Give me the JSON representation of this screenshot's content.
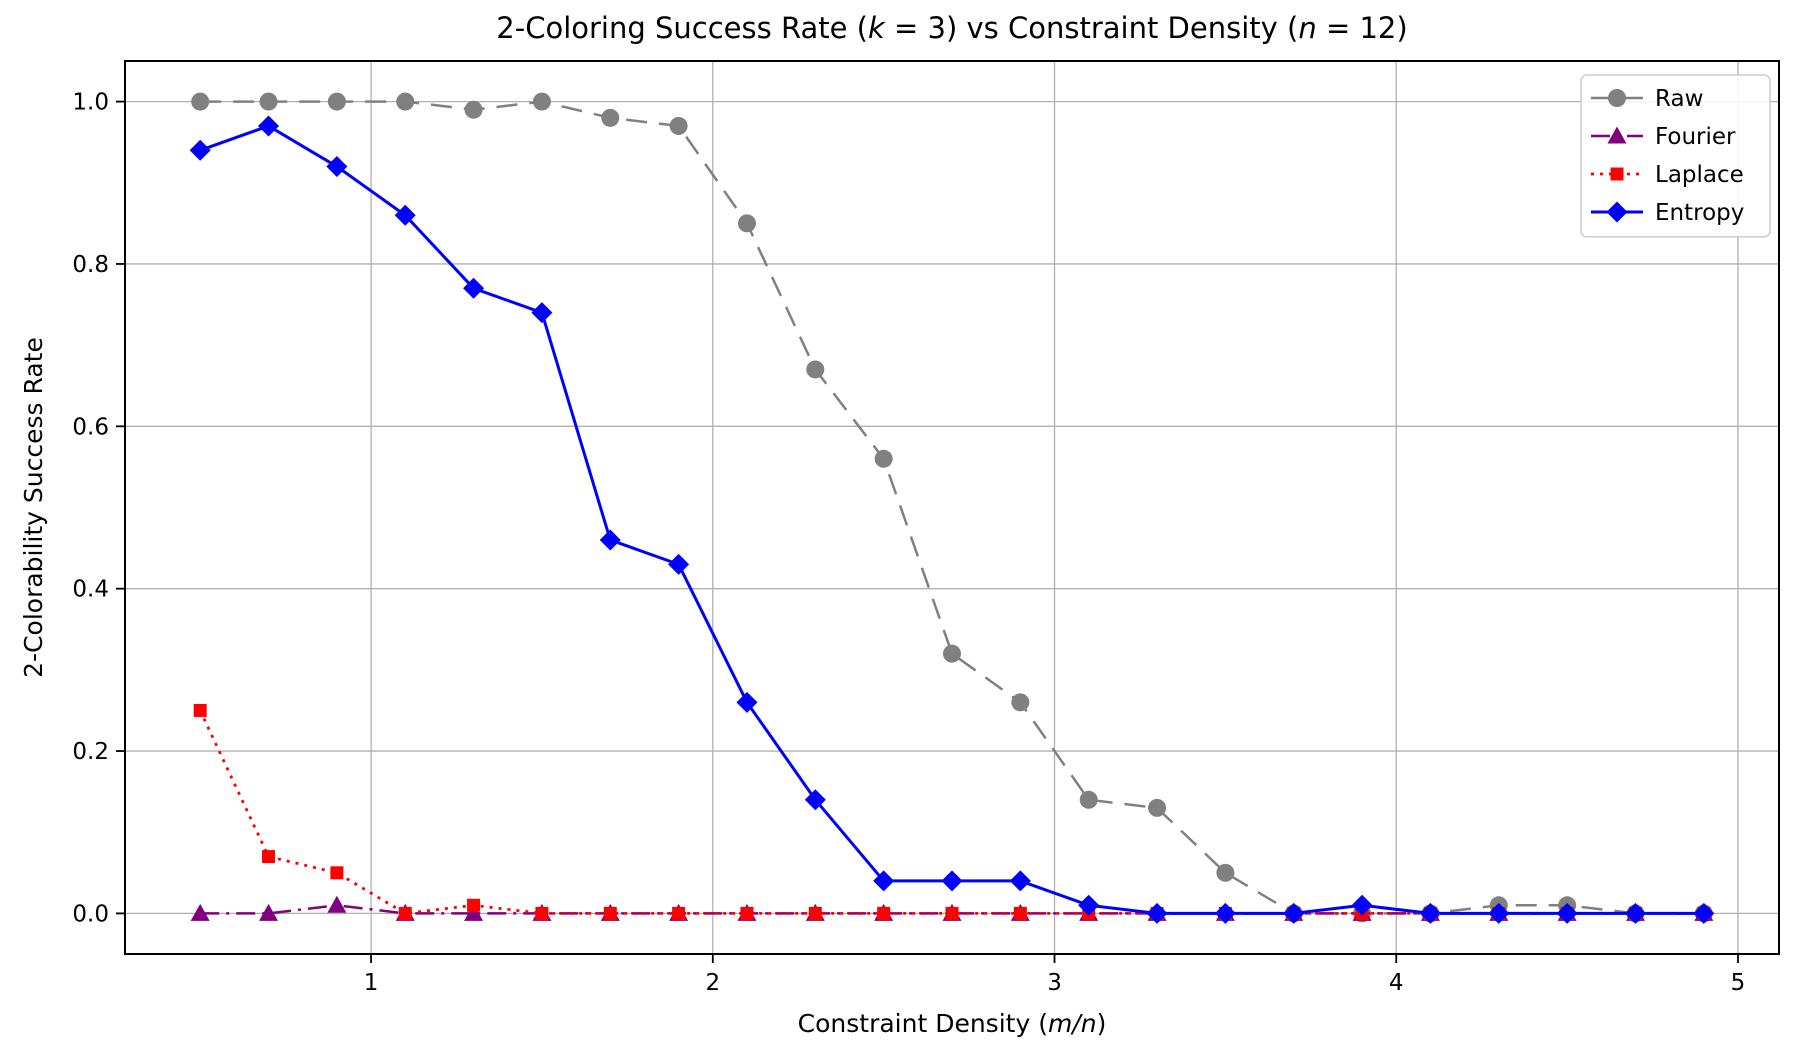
{
  "chart_data": {
    "type": "line",
    "title": "2-Coloring Success Rate (k = 3) vs Constraint Density (n = 12)",
    "title_segments": [
      {
        "t": "2-Coloring Success Rate ("
      },
      {
        "t": "k",
        "i": true
      },
      {
        "t": " = 3) vs Constraint Density ("
      },
      {
        "t": "n",
        "i": true
      },
      {
        "t": " = 12)"
      }
    ],
    "xlabel": "Constraint Density (m/n)",
    "xlabel_segments": [
      {
        "t": "Constraint Density ("
      },
      {
        "t": "m/n",
        "i": true
      },
      {
        "t": ")"
      }
    ],
    "ylabel": "2-Colorability Success Rate",
    "x": [
      0.5,
      0.7,
      0.9,
      1.1,
      1.3,
      1.5,
      1.7,
      1.9,
      2.1,
      2.3,
      2.5,
      2.7,
      2.9,
      3.1,
      3.3,
      3.5,
      3.7,
      3.9,
      4.1,
      4.3,
      4.5,
      4.7,
      4.9
    ],
    "series": [
      {
        "name": "Raw",
        "color": "#808080",
        "linestyle": "dashed",
        "marker": "circle",
        "values": [
          1.0,
          1.0,
          1.0,
          1.0,
          0.99,
          1.0,
          0.98,
          0.97,
          0.85,
          0.67,
          0.56,
          0.32,
          0.26,
          0.14,
          0.13,
          0.05,
          0.0,
          0.0,
          0.0,
          0.01,
          0.01,
          0.0,
          0.0
        ]
      },
      {
        "name": "Fourier",
        "color": "#800080",
        "linestyle": "dashdot",
        "marker": "triangle",
        "values": [
          0.0,
          0.0,
          0.01,
          0.0,
          0.0,
          0.0,
          0.0,
          0.0,
          0.0,
          0.0,
          0.0,
          0.0,
          0.0,
          0.0,
          0.0,
          0.0,
          0.0,
          0.0,
          0.0,
          0.0,
          0.0,
          0.0,
          0.0
        ]
      },
      {
        "name": "Laplace",
        "color": "#ff0000",
        "linestyle": "dotted",
        "marker": "square",
        "values": [
          0.25,
          0.07,
          0.05,
          0.0,
          0.01,
          0.0,
          0.0,
          0.0,
          0.0,
          0.0,
          0.0,
          0.0,
          0.0,
          0.0,
          0.0,
          0.0,
          0.0,
          0.0,
          0.0,
          0.0,
          0.0,
          0.0,
          0.0
        ]
      },
      {
        "name": "Entropy",
        "color": "#0000ff",
        "linestyle": "solid",
        "marker": "diamond",
        "values": [
          0.94,
          0.97,
          0.92,
          0.86,
          0.77,
          0.74,
          0.46,
          0.43,
          0.26,
          0.14,
          0.04,
          0.04,
          0.04,
          0.01,
          0.0,
          0.0,
          0.0,
          0.01,
          0.0,
          0.0,
          0.0,
          0.0,
          0.0
        ]
      }
    ],
    "xticks": [
      1,
      2,
      3,
      4,
      5
    ],
    "yticks": [
      0.0,
      0.2,
      0.4,
      0.6,
      0.8,
      1.0
    ],
    "xlim": [
      0.28,
      5.12
    ],
    "ylim": [
      -0.05,
      1.05
    ],
    "grid": true,
    "grid_color": "#b0b0b0",
    "spine_color": "#000000",
    "legend_position": "upper right",
    "legend_labels": [
      "Raw",
      "Fourier",
      "Laplace",
      "Entropy"
    ]
  }
}
